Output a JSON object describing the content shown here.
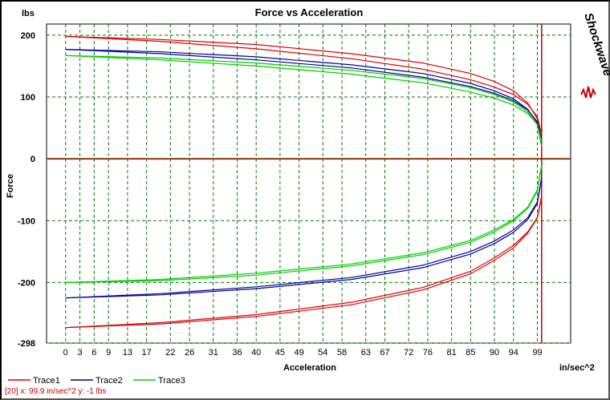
{
  "status": {
    "text": "[20]  x: 99.9 in/sec^2  y:  -1 lbs",
    "color": "#c00000"
  },
  "logo": {
    "text": "Shockwave",
    "color": "#000000",
    "accent": "#cc0000"
  },
  "chart_data": {
    "type": "line",
    "title": "Force vs Acceleration",
    "xlabel": "Acceleration",
    "ylabel": "Force",
    "x_unit": "in/sec^2",
    "y_unit": "lbs",
    "xlim": [
      -4,
      106
    ],
    "ylim": [
      -298,
      218
    ],
    "x_ticks": [
      0,
      3,
      6,
      9,
      13,
      17,
      22,
      26,
      31,
      36,
      40,
      45,
      49,
      54,
      58,
      63,
      67,
      72,
      76,
      81,
      85,
      90,
      94,
      99
    ],
    "x_tick_labels": [
      "0",
      "3",
      "6",
      "9",
      "13",
      "17",
      "22",
      "26",
      "31",
      "36",
      "40",
      "45",
      "49",
      "54",
      "58",
      "63",
      "67",
      "72",
      "76",
      "81",
      "85",
      "90",
      "94",
      "99"
    ],
    "y_ticks": [
      200,
      100,
      0,
      -100,
      -200,
      -298
    ],
    "y_tick_labels": [
      "200",
      "100",
      "0",
      "-100",
      "-200",
      "-298"
    ],
    "grid": true,
    "reference_lines": {
      "y_zero_color": "#8b3a0f",
      "x_marker": 99.9,
      "x_marker_color": "#c00000"
    },
    "legend_position": "bottom-left",
    "series": [
      {
        "name": "Trace1",
        "color": "#dd0000",
        "loops": [
          {
            "x": [
              0,
              20,
              40,
              60,
              75,
              85,
              90,
              94,
              97,
              99,
              99.9
            ],
            "y": [
              198,
              193,
              185,
              170,
              155,
              138,
              125,
              110,
              90,
              65,
              30
            ]
          },
          {
            "x": [
              0,
              20,
              40,
              60,
              75,
              85,
              90,
              94,
              97,
              99,
              99.9
            ],
            "y": [
              198,
              190,
              178,
              162,
              145,
              128,
              116,
              104,
              88,
              68,
              40
            ]
          },
          {
            "x": [
              0,
              20,
              40,
              60,
              75,
              85,
              90,
              94,
              97,
              99,
              99.9
            ],
            "y": [
              -273,
              -265,
              -252,
              -232,
              -208,
              -182,
              -160,
              -140,
              -118,
              -95,
              -60
            ]
          },
          {
            "x": [
              0,
              20,
              40,
              60,
              75,
              85,
              90,
              94,
              97,
              99,
              99.9
            ],
            "y": [
              -273,
              -267,
              -255,
              -236,
              -212,
              -186,
              -164,
              -144,
              -120,
              -96,
              -62
            ]
          }
        ]
      },
      {
        "name": "Trace2",
        "color": "#000099",
        "loops": [
          {
            "x": [
              0,
              20,
              40,
              60,
              75,
              85,
              90,
              94,
              97,
              99,
              99.9
            ],
            "y": [
              177,
              173,
              165,
              152,
              138,
              122,
              110,
              97,
              80,
              58,
              25
            ]
          },
          {
            "x": [
              0,
              20,
              40,
              60,
              75,
              85,
              90,
              94,
              97,
              99,
              99.9
            ],
            "y": [
              177,
              170,
              160,
              147,
              132,
              117,
              106,
              94,
              79,
              60,
              32
            ]
          },
          {
            "x": [
              0,
              20,
              40,
              60,
              75,
              85,
              90,
              94,
              97,
              99,
              99.9
            ],
            "y": [
              -225,
              -218,
              -207,
              -192,
              -172,
              -150,
              -133,
              -115,
              -95,
              -70,
              -30
            ]
          },
          {
            "x": [
              0,
              20,
              40,
              60,
              75,
              85,
              90,
              94,
              97,
              99,
              99.9
            ],
            "y": [
              -225,
              -220,
              -210,
              -195,
              -176,
              -154,
              -137,
              -119,
              -98,
              -72,
              -32
            ]
          }
        ]
      },
      {
        "name": "Trace3",
        "color": "#00cc00",
        "loops": [
          {
            "x": [
              0,
              20,
              40,
              60,
              75,
              85,
              90,
              94,
              97,
              99,
              99.9
            ],
            "y": [
              167,
              163,
              155,
              143,
              130,
              115,
              104,
              92,
              76,
              55,
              20
            ]
          },
          {
            "x": [
              0,
              20,
              40,
              60,
              75,
              85,
              90,
              94,
              97,
              99,
              99.9
            ],
            "y": [
              167,
              160,
              150,
              137,
              123,
              108,
              98,
              87,
              73,
              56,
              28
            ]
          },
          {
            "x": [
              0,
              20,
              40,
              60,
              75,
              85,
              90,
              94,
              97,
              99,
              99.9
            ],
            "y": [
              -200,
              -195,
              -185,
              -170,
              -152,
              -132,
              -115,
              -98,
              -78,
              -50,
              -10
            ]
          },
          {
            "x": [
              0,
              20,
              40,
              60,
              75,
              85,
              90,
              94,
              97,
              99,
              99.9
            ],
            "y": [
              -200,
              -197,
              -188,
              -173,
              -155,
              -135,
              -118,
              -100,
              -80,
              -52,
              -12
            ]
          }
        ]
      }
    ]
  }
}
